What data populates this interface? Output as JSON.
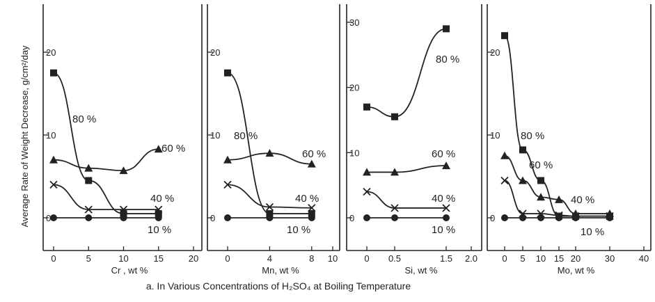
{
  "y_axis_label": "Average Rate of Weight Decrease, g/cm²/day",
  "caption": "a. In Various Concentrations of H₂SO₄ at Boiling Temperature",
  "chart_data": [
    {
      "type": "line",
      "xlabel": "Cr , wt %",
      "xlim": [
        0,
        20
      ],
      "ylim": [
        -4,
        24
      ],
      "x_ticks": [
        "0",
        "5",
        "10",
        "15",
        "20"
      ],
      "y_ticks": [
        "0",
        "10",
        "20"
      ],
      "series": [
        {
          "name": "80%",
          "marker": "square",
          "x": [
            0,
            5,
            10,
            15
          ],
          "y": [
            17.5,
            4.5,
            0.5,
            0.5
          ]
        },
        {
          "name": "60%",
          "marker": "triangle",
          "x": [
            0,
            5,
            10,
            15
          ],
          "y": [
            7,
            6,
            5.7,
            8.3
          ]
        },
        {
          "name": "40%",
          "marker": "x",
          "x": [
            0,
            5,
            10,
            15
          ],
          "y": [
            4,
            1,
            1,
            1
          ]
        },
        {
          "name": "10%",
          "marker": "circle",
          "x": [
            0,
            5,
            10,
            15
          ],
          "y": [
            0,
            0,
            0,
            0
          ]
        }
      ]
    },
    {
      "type": "line",
      "xlabel": "Mn, wt %",
      "xlim": [
        0,
        10
      ],
      "ylim": [
        -4,
        24
      ],
      "x_ticks": [
        "0",
        "4",
        "8",
        "10"
      ],
      "y_ticks": [
        "0",
        "10",
        "20"
      ],
      "series": [
        {
          "name": "80%",
          "marker": "square",
          "x": [
            0,
            4,
            8
          ],
          "y": [
            17.5,
            0.5,
            0.5
          ]
        },
        {
          "name": "60%",
          "marker": "triangle",
          "x": [
            0,
            4,
            8
          ],
          "y": [
            7,
            7.8,
            6.5
          ]
        },
        {
          "name": "40%",
          "marker": "x",
          "x": [
            0,
            4,
            8
          ],
          "y": [
            4,
            1.3,
            1.2
          ]
        },
        {
          "name": "10%",
          "marker": "circle",
          "x": [
            0,
            4,
            8
          ],
          "y": [
            0,
            0,
            0
          ]
        }
      ]
    },
    {
      "type": "line",
      "xlabel": "Si, wt %",
      "xlim": [
        0,
        2.0
      ],
      "ylim": [
        -4,
        30
      ],
      "x_ticks": [
        "0",
        "0.5",
        "1.5",
        "2.0"
      ],
      "y_ticks": [
        "0",
        "10",
        "20",
        "30"
      ],
      "series": [
        {
          "name": "80%",
          "marker": "square",
          "x": [
            0,
            0.5,
            1.5
          ],
          "y": [
            17,
            15.5,
            29
          ]
        },
        {
          "name": "60%",
          "marker": "triangle",
          "x": [
            0,
            0.5,
            1.5
          ],
          "y": [
            7,
            7,
            8
          ]
        },
        {
          "name": "40%",
          "marker": "x",
          "x": [
            0,
            0.5,
            1.5
          ],
          "y": [
            4,
            1.5,
            1.5
          ]
        },
        {
          "name": "10%",
          "marker": "circle",
          "x": [
            0,
            0.5,
            1.5
          ],
          "y": [
            0,
            0,
            0
          ]
        }
      ]
    },
    {
      "type": "line",
      "xlabel": "Mo, wt %",
      "xlim": [
        0,
        40
      ],
      "ylim": [
        -4,
        24
      ],
      "x_ticks": [
        "0",
        "5",
        "10",
        "15",
        "20",
        "30",
        "40"
      ],
      "y_ticks": [
        "0",
        "10",
        "20"
      ],
      "series": [
        {
          "name": "80%",
          "marker": "square",
          "x": [
            0,
            5,
            10,
            15,
            20,
            30
          ],
          "y": [
            22,
            8.2,
            4.5,
            0.2,
            0.2,
            0.2
          ]
        },
        {
          "name": "60%",
          "marker": "triangle",
          "x": [
            0,
            5,
            10,
            15,
            20,
            30
          ],
          "y": [
            7.5,
            4.5,
            2.5,
            2.2,
            0.5,
            0.5
          ]
        },
        {
          "name": "40%",
          "marker": "x",
          "x": [
            0,
            5,
            10,
            15,
            20,
            30
          ],
          "y": [
            4.5,
            0.5,
            0.5,
            0.3,
            0.2,
            0.2
          ]
        },
        {
          "name": "10%",
          "marker": "circle",
          "x": [
            0,
            5,
            10,
            15,
            20,
            30
          ],
          "y": [
            0,
            0,
            0,
            0,
            0,
            0
          ]
        }
      ]
    }
  ]
}
